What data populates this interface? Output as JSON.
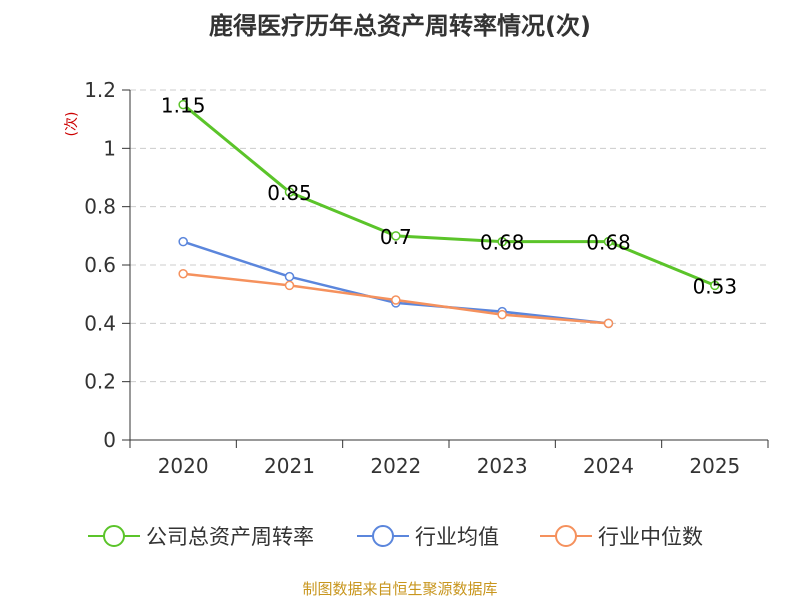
{
  "title": "鹿得医疗历年总资产周转率情况(次)",
  "source": "制图数据来自恒生聚源数据库",
  "colors": {
    "company": "#5bc42a",
    "industry_avg": "#5b86dc",
    "industry_median": "#f5915d",
    "grid": "#cccccc",
    "axis": "#333333",
    "ylabel": "#cc0000"
  },
  "chart_data": {
    "type": "line",
    "title": "鹿得医疗历年总资产周转率情况(次)",
    "ylabel": "(次)",
    "xlabel": "",
    "categories": [
      "2020",
      "2021",
      "2022",
      "2023",
      "2024",
      "2025"
    ],
    "ylim": [
      0,
      1.2
    ],
    "yticks": [
      0,
      0.2,
      0.4,
      0.6,
      0.8,
      1,
      1.2
    ],
    "ytick_labels": [
      "0",
      "0.2",
      "0.4",
      "0.6",
      "0.8",
      "1",
      "1.2"
    ],
    "grid": true,
    "legend_position": "bottom",
    "series": [
      {
        "name": "公司总资产周转率",
        "values": [
          1.15,
          0.85,
          0.7,
          0.68,
          0.68,
          0.53
        ],
        "data_labels": [
          "1.15",
          "0.85",
          "0.7",
          "0.68",
          "0.68",
          "0.53"
        ]
      },
      {
        "name": "行业均值",
        "values": [
          0.68,
          0.56,
          0.47,
          0.44,
          0.4,
          null
        ]
      },
      {
        "name": "行业中位数",
        "values": [
          0.57,
          0.53,
          0.48,
          0.43,
          0.4,
          null
        ]
      }
    ]
  }
}
